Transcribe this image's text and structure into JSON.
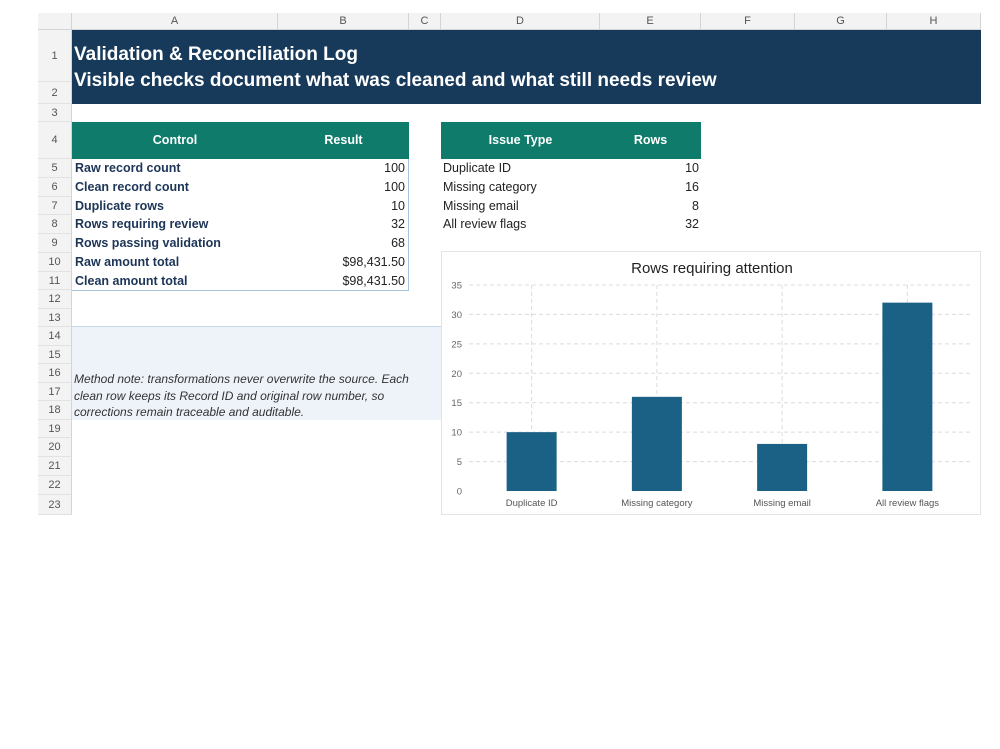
{
  "columns": [
    "A",
    "B",
    "C",
    "D",
    "E",
    "F",
    "G",
    "H"
  ],
  "rows": [
    "1",
    "2",
    "3",
    "4",
    "5",
    "6",
    "7",
    "8",
    "9",
    "10",
    "11",
    "12",
    "13",
    "14",
    "15",
    "16",
    "17",
    "18",
    "19",
    "20",
    "21",
    "22",
    "23"
  ],
  "banner": {
    "title": "Validation & Reconciliation Log",
    "subtitle": "Visible checks document what was cleaned and what still needs review"
  },
  "controls": {
    "header_control": "Control",
    "header_result": "Result",
    "items": [
      {
        "label": "Raw record count",
        "value": "100"
      },
      {
        "label": "Clean record count",
        "value": "100"
      },
      {
        "label": "Duplicate rows",
        "value": "10"
      },
      {
        "label": "Rows requiring review",
        "value": "32"
      },
      {
        "label": "Rows passing validation",
        "value": "68"
      },
      {
        "label": "Raw amount total",
        "value": "$98,431.50"
      },
      {
        "label": "Clean amount total",
        "value": "$98,431.50"
      }
    ]
  },
  "issues": {
    "header_type": "Issue Type",
    "header_rows": "Rows",
    "items": [
      {
        "label": "Duplicate ID",
        "value": "10"
      },
      {
        "label": "Missing category",
        "value": "16"
      },
      {
        "label": "Missing email",
        "value": "8"
      },
      {
        "label": "All review flags",
        "value": "32"
      }
    ]
  },
  "note": {
    "text": "Method note: transformations never overwrite the source. Each clean row keeps its Record ID and original row number, so corrections remain traceable and auditable."
  },
  "chart_data": {
    "type": "bar",
    "title": "Rows requiring attention",
    "categories": [
      "Duplicate ID",
      "Missing category",
      "Missing email",
      "All review flags"
    ],
    "values": [
      10,
      16,
      8,
      32
    ],
    "ylim": [
      0,
      35
    ],
    "yticks": [
      0,
      5,
      10,
      15,
      20,
      25,
      30,
      35
    ],
    "grid": true,
    "bar_color": "#1b6186"
  },
  "colors": {
    "banner": "#183a5a",
    "table_header": "#0f7c6b",
    "label_text": "#1d3557"
  }
}
